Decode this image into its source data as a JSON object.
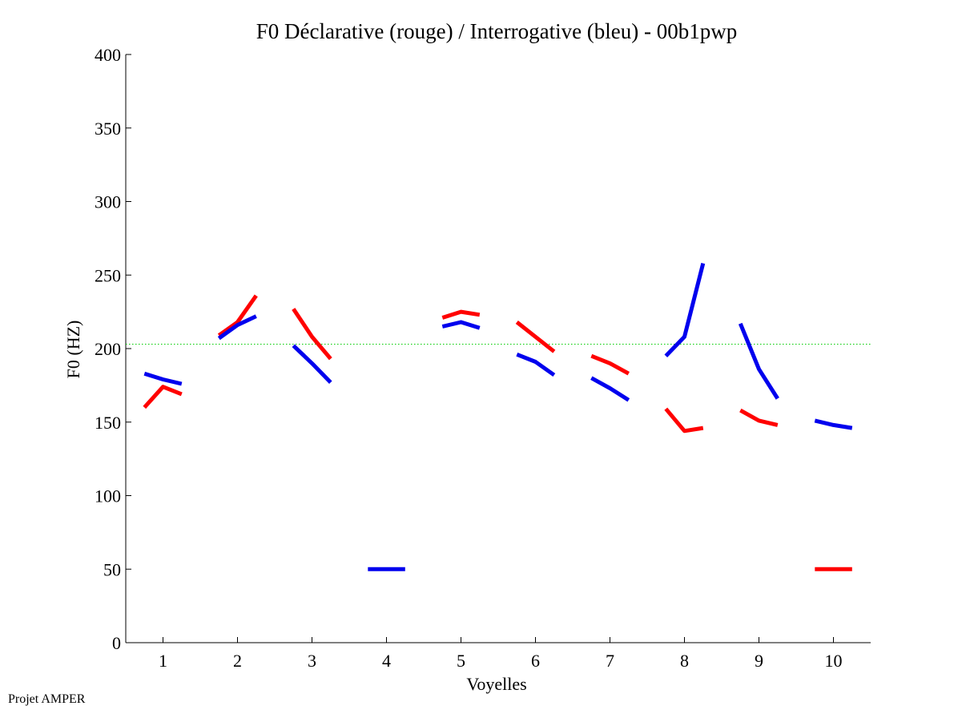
{
  "footer": {
    "label": "Projet AMPER"
  },
  "chart_data": {
    "type": "line",
    "title": "F0 Déclarative (rouge) / Interrogative (bleu) - 00b1pwp",
    "xlabel": "Voyelles",
    "ylabel": "F0 (HZ)",
    "xlim": [
      0.5,
      10.5
    ],
    "ylim": [
      0,
      400
    ],
    "xticks": [
      1,
      2,
      3,
      4,
      5,
      6,
      7,
      8,
      9,
      10
    ],
    "yticks": [
      0,
      50,
      100,
      150,
      200,
      250,
      300,
      350,
      400
    ],
    "grid": false,
    "reference_line": {
      "y": 203,
      "color": "#00cc00",
      "style": "dotted"
    },
    "series": [
      {
        "color": "#ff0000",
        "segments": [
          {
            "x": [
              0.75,
              1.0,
              1.25
            ],
            "y": [
              160,
              174,
              169
            ]
          },
          {
            "x": [
              1.75,
              2.0,
              2.25
            ],
            "y": [
              209,
              218,
              236
            ]
          },
          {
            "x": [
              2.75,
              3.0,
              3.25
            ],
            "y": [
              227,
              208,
              193
            ]
          },
          {
            "x": [
              4.75,
              5.0,
              5.25
            ],
            "y": [
              221,
              225,
              223
            ]
          },
          {
            "x": [
              5.75,
              6.0,
              6.25
            ],
            "y": [
              218,
              208,
              198
            ]
          },
          {
            "x": [
              6.75,
              7.0,
              7.25
            ],
            "y": [
              195,
              190,
              183
            ]
          },
          {
            "x": [
              7.75,
              8.0,
              8.25
            ],
            "y": [
              159,
              144,
              146
            ]
          },
          {
            "x": [
              8.75,
              9.0,
              9.25
            ],
            "y": [
              158,
              151,
              148
            ]
          },
          {
            "x": [
              9.75,
              10.0,
              10.25
            ],
            "y": [
              50,
              50,
              50
            ]
          }
        ]
      },
      {
        "color": "#0000ee",
        "segments": [
          {
            "x": [
              0.75,
              1.0,
              1.25
            ],
            "y": [
              183,
              179,
              176
            ]
          },
          {
            "x": [
              1.75,
              2.0,
              2.25
            ],
            "y": [
              207,
              216,
              222
            ]
          },
          {
            "x": [
              2.75,
              3.0,
              3.25
            ],
            "y": [
              202,
              190,
              177
            ]
          },
          {
            "x": [
              3.75,
              4.0,
              4.25
            ],
            "y": [
              50,
              50,
              50
            ]
          },
          {
            "x": [
              4.75,
              5.0,
              5.25
            ],
            "y": [
              215,
              218,
              214
            ]
          },
          {
            "x": [
              5.75,
              6.0,
              6.25
            ],
            "y": [
              196,
              191,
              182
            ]
          },
          {
            "x": [
              6.75,
              7.0,
              7.25
            ],
            "y": [
              180,
              173,
              165
            ]
          },
          {
            "x": [
              7.75,
              8.0,
              8.25
            ],
            "y": [
              195,
              208,
              258
            ]
          },
          {
            "x": [
              8.75,
              9.0,
              9.25
            ],
            "y": [
              217,
              186,
              166
            ]
          },
          {
            "x": [
              9.75,
              10.0,
              10.25
            ],
            "y": [
              151,
              148,
              146
            ]
          }
        ]
      }
    ]
  }
}
